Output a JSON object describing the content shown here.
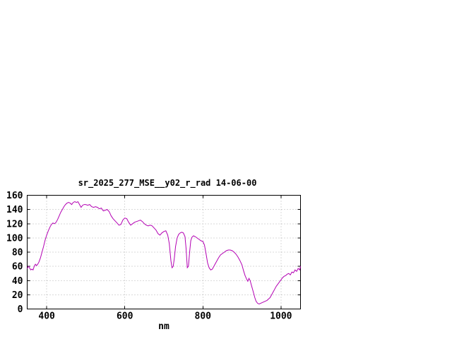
{
  "page": {
    "background": "#ffffff"
  },
  "chart_data": {
    "type": "line",
    "title": "sr_2025_277_MSE__y02_r_rad 14-06-00",
    "xlabel": "nm",
    "ylabel": "",
    "xlim": [
      350,
      1050
    ],
    "ylim": [
      0,
      160
    ],
    "xticks": [
      400,
      600,
      800,
      1000
    ],
    "yticks": [
      0,
      20,
      40,
      60,
      80,
      100,
      120,
      140,
      160
    ],
    "grid": true,
    "legend": "none",
    "series": [
      {
        "color": "#b300b3",
        "points": [
          [
            350,
            57
          ],
          [
            353,
            60
          ],
          [
            356,
            58
          ],
          [
            359,
            55
          ],
          [
            362,
            56
          ],
          [
            365,
            55
          ],
          [
            368,
            60
          ],
          [
            371,
            63
          ],
          [
            374,
            61
          ],
          [
            377,
            63
          ],
          [
            380,
            66
          ],
          [
            384,
            72
          ],
          [
            388,
            80
          ],
          [
            392,
            88
          ],
          [
            396,
            97
          ],
          [
            400,
            104
          ],
          [
            404,
            110
          ],
          [
            408,
            115
          ],
          [
            412,
            119
          ],
          [
            416,
            121
          ],
          [
            420,
            120
          ],
          [
            424,
            122
          ],
          [
            428,
            126
          ],
          [
            432,
            131
          ],
          [
            436,
            136
          ],
          [
            440,
            140
          ],
          [
            444,
            144
          ],
          [
            448,
            147
          ],
          [
            452,
            149
          ],
          [
            456,
            150
          ],
          [
            460,
            149
          ],
          [
            464,
            147
          ],
          [
            468,
            150
          ],
          [
            472,
            151
          ],
          [
            476,
            150
          ],
          [
            480,
            151
          ],
          [
            484,
            147
          ],
          [
            488,
            143
          ],
          [
            492,
            146
          ],
          [
            496,
            147
          ],
          [
            500,
            147
          ],
          [
            505,
            146
          ],
          [
            510,
            147
          ],
          [
            515,
            144
          ],
          [
            520,
            143
          ],
          [
            525,
            144
          ],
          [
            530,
            143
          ],
          [
            535,
            141
          ],
          [
            540,
            142
          ],
          [
            545,
            138
          ],
          [
            550,
            139
          ],
          [
            555,
            140
          ],
          [
            560,
            137
          ],
          [
            565,
            131
          ],
          [
            570,
            127
          ],
          [
            575,
            124
          ],
          [
            580,
            121
          ],
          [
            585,
            118
          ],
          [
            590,
            119
          ],
          [
            595,
            125
          ],
          [
            600,
            128
          ],
          [
            605,
            127
          ],
          [
            610,
            122
          ],
          [
            615,
            118
          ],
          [
            620,
            120
          ],
          [
            625,
            122
          ],
          [
            630,
            123
          ],
          [
            635,
            124
          ],
          [
            640,
            125
          ],
          [
            645,
            123
          ],
          [
            650,
            120
          ],
          [
            655,
            118
          ],
          [
            660,
            117
          ],
          [
            665,
            118
          ],
          [
            670,
            117
          ],
          [
            675,
            114
          ],
          [
            680,
            111
          ],
          [
            685,
            106
          ],
          [
            690,
            104
          ],
          [
            695,
            107
          ],
          [
            700,
            109
          ],
          [
            705,
            110
          ],
          [
            710,
            104
          ],
          [
            714,
            92
          ],
          [
            718,
            68
          ],
          [
            721,
            58
          ],
          [
            724,
            60
          ],
          [
            727,
            72
          ],
          [
            730,
            88
          ],
          [
            734,
            100
          ],
          [
            738,
            105
          ],
          [
            742,
            107
          ],
          [
            746,
            108
          ],
          [
            750,
            107
          ],
          [
            754,
            102
          ],
          [
            757,
            85
          ],
          [
            760,
            58
          ],
          [
            763,
            60
          ],
          [
            766,
            80
          ],
          [
            769,
            96
          ],
          [
            772,
            101
          ],
          [
            776,
            103
          ],
          [
            780,
            102
          ],
          [
            785,
            100
          ],
          [
            790,
            98
          ],
          [
            795,
            96
          ],
          [
            800,
            95
          ],
          [
            804,
            90
          ],
          [
            808,
            78
          ],
          [
            812,
            65
          ],
          [
            816,
            58
          ],
          [
            820,
            55
          ],
          [
            824,
            56
          ],
          [
            828,
            60
          ],
          [
            832,
            64
          ],
          [
            836,
            68
          ],
          [
            840,
            72
          ],
          [
            845,
            76
          ],
          [
            850,
            78
          ],
          [
            855,
            80
          ],
          [
            860,
            82
          ],
          [
            865,
            83
          ],
          [
            870,
            83
          ],
          [
            875,
            82
          ],
          [
            880,
            80
          ],
          [
            885,
            77
          ],
          [
            890,
            73
          ],
          [
            895,
            68
          ],
          [
            900,
            62
          ],
          [
            904,
            54
          ],
          [
            908,
            47
          ],
          [
            912,
            42
          ],
          [
            915,
            39
          ],
          [
            918,
            43
          ],
          [
            921,
            40
          ],
          [
            924,
            34
          ],
          [
            927,
            28
          ],
          [
            930,
            22
          ],
          [
            933,
            16
          ],
          [
            936,
            11
          ],
          [
            940,
            8
          ],
          [
            944,
            7
          ],
          [
            948,
            8
          ],
          [
            952,
            9
          ],
          [
            956,
            10
          ],
          [
            960,
            11
          ],
          [
            964,
            12
          ],
          [
            968,
            14
          ],
          [
            972,
            16
          ],
          [
            976,
            20
          ],
          [
            980,
            24
          ],
          [
            984,
            28
          ],
          [
            988,
            32
          ],
          [
            992,
            35
          ],
          [
            996,
            38
          ],
          [
            1000,
            41
          ],
          [
            1004,
            44
          ],
          [
            1008,
            46
          ],
          [
            1012,
            47
          ],
          [
            1016,
            49
          ],
          [
            1020,
            50
          ],
          [
            1024,
            48
          ],
          [
            1028,
            52
          ],
          [
            1032,
            51
          ],
          [
            1036,
            55
          ],
          [
            1040,
            53
          ],
          [
            1044,
            57
          ],
          [
            1048,
            55
          ],
          [
            1050,
            60
          ]
        ]
      }
    ]
  }
}
